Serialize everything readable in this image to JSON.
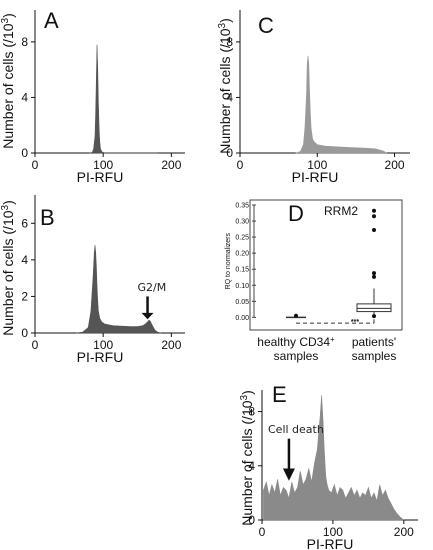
{
  "chart_data": [
    {
      "id": "A",
      "type": "area",
      "panel_label": "A",
      "xlabel": "PI-RFU",
      "ylabel": "Number of cells (/10",
      "ylabel_sup": "3",
      "ylabel_end": ")",
      "xlim": [
        0,
        220
      ],
      "ylim": [
        0,
        9
      ],
      "x_ticks": [
        0,
        100,
        200
      ],
      "y_ticks": [
        0,
        4,
        8
      ],
      "color": "#555555",
      "x": [
        80,
        84,
        86,
        88,
        89,
        90,
        91,
        92,
        93,
        94,
        95,
        96,
        98,
        100,
        102,
        104,
        120,
        180
      ],
      "y": [
        0,
        0.05,
        0.3,
        1.2,
        3.0,
        5.6,
        7.8,
        6.2,
        3.6,
        1.8,
        0.8,
        0.3,
        0.1,
        0.04,
        0.02,
        0,
        0,
        0
      ]
    },
    {
      "id": "B",
      "type": "area",
      "panel_label": "B",
      "xlabel": "PI-RFU",
      "ylabel": "Number of cells (/10",
      "ylabel_sup": "3",
      "ylabel_end": ")",
      "xlim": [
        0,
        220
      ],
      "ylim": [
        0,
        7
      ],
      "x_ticks": [
        0,
        100,
        200
      ],
      "y_ticks": [
        0,
        2,
        4,
        6
      ],
      "color": "#555555",
      "annotation": "G2/M",
      "annotation_x": 168,
      "x": [
        60,
        70,
        78,
        82,
        85,
        87,
        88,
        89,
        90,
        91,
        92,
        93,
        95,
        98,
        102,
        108,
        115,
        125,
        140,
        150,
        158,
        162,
        165,
        167,
        169,
        171,
        173,
        176,
        180,
        185
      ],
      "y": [
        0,
        0.05,
        0.3,
        1.2,
        3.0,
        4.4,
        4.8,
        4.4,
        3.6,
        2.6,
        1.8,
        1.2,
        0.8,
        0.6,
        0.5,
        0.45,
        0.4,
        0.38,
        0.35,
        0.35,
        0.4,
        0.5,
        0.6,
        0.7,
        0.65,
        0.5,
        0.35,
        0.15,
        0.05,
        0
      ]
    },
    {
      "id": "C",
      "type": "area",
      "panel_label": "C",
      "xlabel": "PI-RFU",
      "ylabel": "Number of cells (/10",
      "ylabel_sup": "3",
      "ylabel_end": ")",
      "xlim": [
        0,
        220
      ],
      "ylim": [
        0,
        9
      ],
      "x_ticks": [
        0,
        100,
        200
      ],
      "y_ticks": [
        0,
        4,
        8
      ],
      "color": "#9a9a9a",
      "x": [
        72,
        78,
        82,
        84,
        86,
        87,
        88,
        89,
        90,
        91,
        92,
        94,
        96,
        100,
        110,
        125,
        140,
        160,
        175,
        185,
        190
      ],
      "y": [
        0,
        0.1,
        0.6,
        1.8,
        4.2,
        6.4,
        7.0,
        6.4,
        4.6,
        3.0,
        1.8,
        1.0,
        0.8,
        0.6,
        0.5,
        0.45,
        0.4,
        0.35,
        0.3,
        0.15,
        0
      ]
    },
    {
      "id": "D",
      "type": "box",
      "panel_label": "D",
      "title": "RRM2",
      "ylabel": "RQ to normalizers",
      "ylim": [
        -0.03,
        0.35
      ],
      "y_ticks": [
        "0.00",
        "0.05",
        "0.10",
        "0.15",
        "0.20",
        "0.25",
        "0.30",
        "0.35"
      ],
      "significance": "***",
      "groups": [
        {
          "name": "healthy CD34",
          "name_sup": "+",
          "name_line2": "samples",
          "min": 0.0,
          "q1": 0.0,
          "median": 0.0,
          "q3": 0.001,
          "max": 0.002,
          "outliers": [
            0.005
          ]
        },
        {
          "name": "patients'",
          "name_line2": "samples",
          "min": 0.0,
          "q1": 0.018,
          "median": 0.028,
          "q3": 0.042,
          "max": 0.09,
          "outliers": [
            0.332,
            0.315,
            0.272,
            0.138,
            0.126,
            0.004
          ]
        }
      ]
    },
    {
      "id": "E",
      "type": "area",
      "panel_label": "E",
      "xlabel": "PI-RFU",
      "ylabel": "Number of cells (/10",
      "ylabel_sup": "3",
      "ylabel_end": ")",
      "xlim": [
        0,
        220
      ],
      "ylim": [
        0,
        9
      ],
      "x_ticks": [
        0,
        100,
        200
      ],
      "y_ticks": [
        0,
        4,
        8
      ],
      "color": "#8a8a8a",
      "annotation": "Cell death",
      "annotation_x": 38,
      "x": [
        2,
        6,
        10,
        14,
        18,
        22,
        26,
        30,
        34,
        38,
        42,
        46,
        50,
        54,
        58,
        62,
        66,
        70,
        74,
        78,
        80,
        82,
        84,
        86,
        88,
        90,
        92,
        94,
        98,
        102,
        106,
        110,
        114,
        118,
        122,
        126,
        130,
        134,
        138,
        142,
        146,
        150,
        154,
        158,
        162,
        166,
        170,
        174,
        178,
        182,
        186,
        190,
        195,
        200
      ],
      "y": [
        2.2,
        2.8,
        1.8,
        2.6,
        2.0,
        3.0,
        1.8,
        2.4,
        2.2,
        1.6,
        2.8,
        2.0,
        2.4,
        3.6,
        2.6,
        3.0,
        3.8,
        2.8,
        4.2,
        5.2,
        6.4,
        7.6,
        9.2,
        7.4,
        5.0,
        3.2,
        2.6,
        2.2,
        2.0,
        2.6,
        1.8,
        2.4,
        2.2,
        1.6,
        2.0,
        2.4,
        1.8,
        2.2,
        1.6,
        2.0,
        1.8,
        2.4,
        1.6,
        2.0,
        1.4,
        2.6,
        1.8,
        2.2,
        1.6,
        1.2,
        0.8,
        0.5,
        0.2,
        0
      ]
    }
  ]
}
